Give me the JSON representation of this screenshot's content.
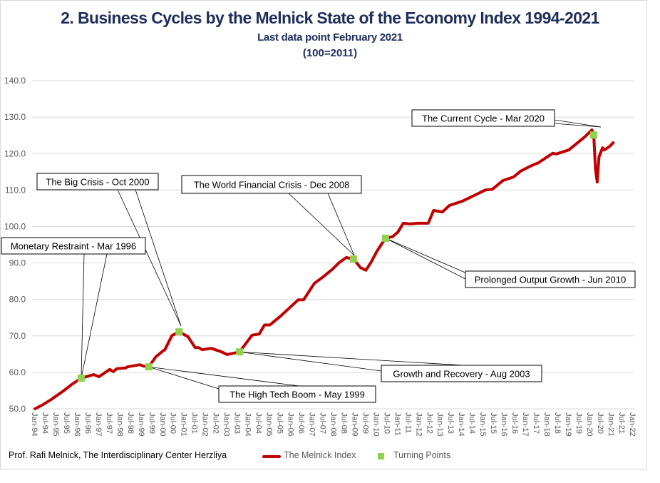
{
  "title": "2.  Business Cycles by the Melnick State of the Economy Index 1994-2021",
  "subtitle": "Last data point February 2021",
  "subtitle2": "(100=2011)",
  "footer": "Prof. Rafi Melnick, The Interdisciplinary Center Herzliya",
  "colors": {
    "title": "#1f2d5a",
    "line": "#c00000",
    "markers": "#92d050",
    "grid": "#d9d9d9"
  },
  "chart_data": {
    "type": "line",
    "title": "2.  Business Cycles by the Melnick State of the Economy Index 1994-2021",
    "ylim": [
      50,
      140
    ],
    "yticks": [
      "50.0",
      "60.0",
      "70.0",
      "80.0",
      "90.0",
      "100.0",
      "110.0",
      "120.0",
      "130.0",
      "140.0"
    ],
    "xlim": [
      "1994-01",
      "2022-01"
    ],
    "xticks": [
      "Jan-94",
      "Jul-94",
      "Jan-95",
      "Jul-95",
      "Jan-96",
      "Jul-96",
      "Jan-97",
      "Jul-97",
      "Jan-98",
      "Jul-98",
      "Jan-99",
      "Jul-99",
      "Jan-00",
      "Jul-00",
      "Jan-01",
      "Jul-01",
      "Jan-02",
      "Jul-02",
      "Jan-03",
      "Jul-03",
      "Jan-04",
      "Jul-04",
      "Jan-05",
      "Jul-05",
      "Jan-06",
      "Jul-06",
      "Jan-07",
      "Jul-07",
      "Jan-08",
      "Jul-08",
      "Jan-09",
      "Jul-09",
      "Jan-10",
      "Jul-10",
      "Jan-11",
      "Jul-11",
      "Jan-12",
      "Jul-12",
      "Jan-13",
      "Jul-13",
      "Jan-14",
      "Jul-14",
      "Jan-15",
      "Jul-15",
      "Jan-16",
      "Jul-16",
      "Jan-17",
      "Jul-17",
      "Jan-18",
      "Jul-18",
      "Jan-19",
      "Jul-19",
      "Jan-20",
      "Jul-20",
      "Jan-21",
      "Jul-21",
      "Jan-22"
    ],
    "grid": true,
    "legend_placement": "bottom",
    "series": [
      {
        "name": "The Melnick Index",
        "color": "#c00000",
        "points": [
          [
            "1994-01",
            50.0
          ],
          [
            "1994-05",
            51.0
          ],
          [
            "1994-10",
            52.5
          ],
          [
            "1995-05",
            54.9
          ],
          [
            "1995-10",
            56.8
          ],
          [
            "1996-03",
            58.4
          ],
          [
            "1996-10",
            59.4
          ],
          [
            "1997-01",
            58.8
          ],
          [
            "1997-07",
            60.8
          ],
          [
            "1997-09",
            60.2
          ],
          [
            "1997-11",
            61.0
          ],
          [
            "1998-04",
            61.2
          ],
          [
            "1998-05",
            61.5
          ],
          [
            "1998-12",
            62.1
          ],
          [
            "1999-02",
            61.7
          ],
          [
            "1999-05",
            61.5
          ],
          [
            "1999-09",
            64.3
          ],
          [
            "2000-01",
            65.9
          ],
          [
            "2000-02",
            66.2
          ],
          [
            "2000-06",
            70.1
          ],
          [
            "2000-10",
            71.1
          ],
          [
            "2001-03",
            69.8
          ],
          [
            "2001-07",
            66.8
          ],
          [
            "2001-09",
            66.8
          ],
          [
            "2001-11",
            66.2
          ],
          [
            "2002-04",
            66.6
          ],
          [
            "2002-10",
            65.6
          ],
          [
            "2003-01",
            64.9
          ],
          [
            "2003-08",
            65.6
          ],
          [
            "2004-03",
            70.2
          ],
          [
            "2004-07",
            70.5
          ],
          [
            "2004-10",
            73.0
          ],
          [
            "2005-01",
            73.0
          ],
          [
            "2005-07",
            75.4
          ],
          [
            "2006-05",
            79.9
          ],
          [
            "2006-08",
            79.9
          ],
          [
            "2007-02",
            84.4
          ],
          [
            "2007-07",
            86.2
          ],
          [
            "2007-12",
            88.2
          ],
          [
            "2008-04",
            90.1
          ],
          [
            "2008-08",
            91.5
          ],
          [
            "2008-12",
            91.1
          ],
          [
            "2009-04",
            88.7
          ],
          [
            "2009-07",
            88.0
          ],
          [
            "2009-10",
            90.3
          ],
          [
            "2010-01",
            93.1
          ],
          [
            "2010-06",
            96.8
          ],
          [
            "2010-10",
            97.2
          ],
          [
            "2011-01",
            98.5
          ],
          [
            "2011-04",
            100.9
          ],
          [
            "2011-08",
            100.7
          ],
          [
            "2011-12",
            100.9
          ],
          [
            "2012-06",
            100.9
          ],
          [
            "2012-09",
            104.4
          ],
          [
            "2013-02",
            104.0
          ],
          [
            "2013-06",
            105.8
          ],
          [
            "2014-01",
            106.9
          ],
          [
            "2014-07",
            108.3
          ],
          [
            "2015-02",
            110.0
          ],
          [
            "2015-06",
            110.2
          ],
          [
            "2015-12",
            112.6
          ],
          [
            "2016-06",
            113.6
          ],
          [
            "2016-10",
            115.2
          ],
          [
            "2017-04",
            116.7
          ],
          [
            "2017-08",
            117.5
          ],
          [
            "2018-04",
            120.1
          ],
          [
            "2018-06",
            119.9
          ],
          [
            "2019-01",
            121.0
          ],
          [
            "2019-07",
            123.4
          ],
          [
            "2019-10",
            124.6
          ],
          [
            "2020-02",
            126.5
          ],
          [
            "2020-03",
            125.1
          ],
          [
            "2020-04",
            115.7
          ],
          [
            "2020-05",
            112.2
          ],
          [
            "2020-06",
            119.1
          ],
          [
            "2020-08",
            121.6
          ],
          [
            "2020-09",
            121.0
          ],
          [
            "2020-12",
            122.0
          ],
          [
            "2021-02",
            123.0
          ]
        ]
      },
      {
        "name": "Turning Points",
        "color": "#92d050",
        "points": [
          [
            "1996-03",
            58.4
          ],
          [
            "1999-05",
            61.5
          ],
          [
            "2000-10",
            71.1
          ],
          [
            "2003-08",
            65.6
          ],
          [
            "2008-12",
            91.1
          ],
          [
            "2010-06",
            96.8
          ],
          [
            "2020-03",
            125.1
          ]
        ]
      }
    ],
    "annotations": [
      {
        "label": "Monetary Restraint - Mar 1996",
        "date": "1996-03"
      },
      {
        "label": "The High  Tech Boom - May 1999",
        "date": "1999-05"
      },
      {
        "label": "The Big Crisis - Oct 2000",
        "date": "2000-10"
      },
      {
        "label": "Growth and Recovery - Aug 2003",
        "date": "2003-08"
      },
      {
        "label": "The World Financial Crisis - Dec 2008",
        "date": "2008-12"
      },
      {
        "label": "Prolonged Output Growth - Jun 2010",
        "date": "2010-06"
      },
      {
        "label": "The Current Cycle - Mar 2020",
        "date": "2020-03"
      }
    ]
  }
}
